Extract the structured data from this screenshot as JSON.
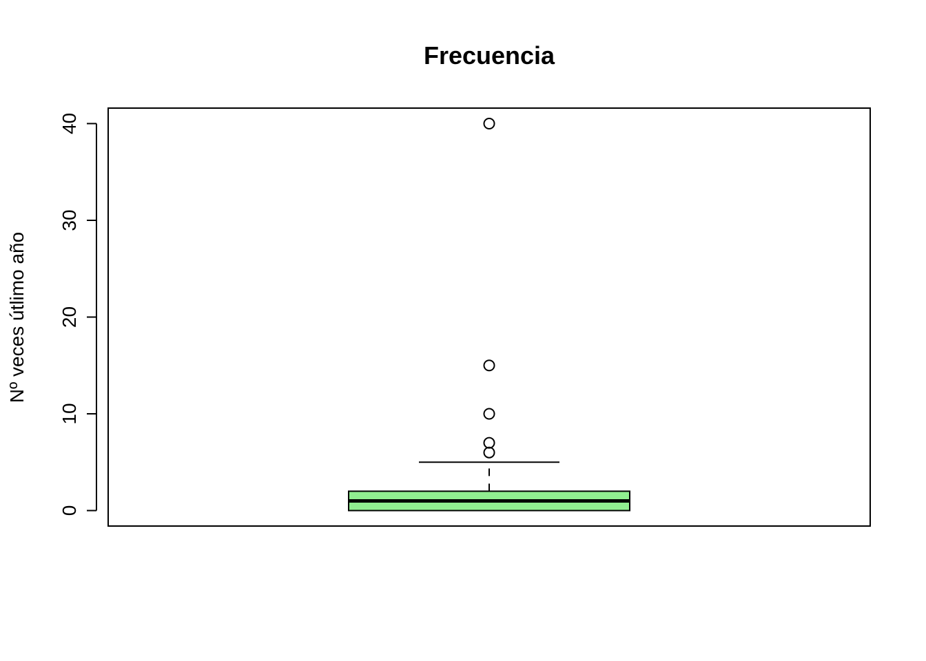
{
  "chart_data": {
    "type": "boxplot",
    "title": "Frecuencia",
    "xlabel": "",
    "ylabel": "Nº veces útlimo año",
    "ylim": [
      -1.6,
      41.6
    ],
    "y_ticks": [
      0,
      10,
      20,
      30,
      40
    ],
    "y_tick_labels": [
      "0",
      "10",
      "20",
      "30",
      "40"
    ],
    "grid": false,
    "legend": "none",
    "box": {
      "min": 0,
      "q1": 0,
      "median": 1,
      "q3": 2,
      "upper_whisker": 5,
      "lower_whisker": 0,
      "outliers": [
        6,
        7,
        10,
        15,
        40
      ]
    },
    "colors": {
      "box_fill": "#90ee90",
      "stroke": "#000000"
    }
  }
}
